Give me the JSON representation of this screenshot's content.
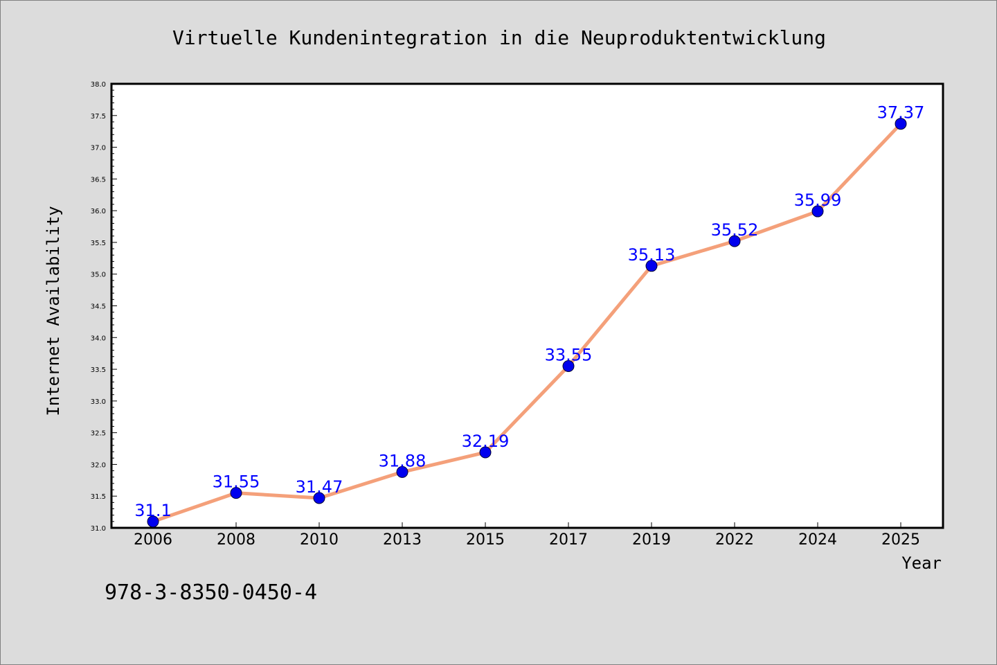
{
  "chart_data": {
    "type": "line",
    "title": "Virtuelle Kundenintegration in die Neuproduktentwicklung",
    "xlabel": "Year",
    "ylabel": "Internet Availability",
    "categories": [
      "2006",
      "2008",
      "2010",
      "2013",
      "2015",
      "2017",
      "2019",
      "2022",
      "2024",
      "2025"
    ],
    "series": [
      {
        "values": [
          31.1,
          31.55,
          31.47,
          31.88,
          32.19,
          33.55,
          35.13,
          35.52,
          35.99,
          37.37
        ],
        "labels": [
          "31.1",
          "31.55",
          "31.47",
          "31.88",
          "32.19",
          "33.55",
          "35.13",
          "35.52",
          "35.99",
          "37.37"
        ]
      }
    ],
    "ylim": [
      31.0,
      38.0
    ],
    "yticks": [
      "31.0",
      "31.5",
      "32.0",
      "32.5",
      "33.0",
      "33.5",
      "34.0",
      "34.5",
      "35.0",
      "35.5",
      "36.0",
      "36.5",
      "37.0",
      "37.5",
      "38.0"
    ],
    "grid": false,
    "legend": "none",
    "colors": {
      "line": "#f4a07a",
      "marker": "#0000ee",
      "data_label": "#0000ff",
      "background": "#dcdcdc",
      "plot_background": "#ffffff"
    }
  },
  "footer": {
    "isbn": "978-3-8350-0450-4"
  }
}
